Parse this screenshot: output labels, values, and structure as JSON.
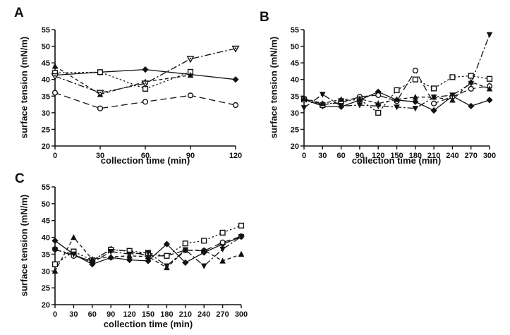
{
  "figure": {
    "background_color": "#ffffff",
    "ink_color": "#111111",
    "description": "Three-panel line chart figure (A, B, C) of surface tension versus collection time, five series per panel distinguished by marker shape and line dash style, no legend shown"
  },
  "chart_data": [
    {
      "type": "line",
      "panel_label": "A",
      "xlabel": "collection time (min)",
      "ylabel": "surface tension (mN/m)",
      "x": [
        0,
        30,
        60,
        90,
        120
      ],
      "xlim": [
        0,
        120
      ],
      "ylim": [
        20,
        55
      ],
      "yticks": [
        20,
        25,
        30,
        35,
        40,
        45,
        50,
        55
      ],
      "grid": false,
      "legend": "none",
      "series": [
        {
          "name": "filled-diamond-solid",
          "marker": "diamond-filled",
          "line": "solid",
          "values": [
            41.3,
            42.2,
            43,
            41.5,
            40
          ]
        },
        {
          "name": "open-circle-dashed",
          "marker": "circle-open",
          "line": "dashed",
          "values": [
            36,
            31.3,
            33.3,
            35.2,
            32.3
          ]
        },
        {
          "name": "open-square-dotted",
          "marker": "square-open",
          "line": "dotted",
          "values": [
            42,
            42.2,
            37.2,
            42.3,
            null
          ]
        },
        {
          "name": "filled-triangle-dashed",
          "marker": "triangle-up-filled",
          "line": "short-dash",
          "values": [
            44,
            35.5,
            39.3,
            41.3,
            null
          ]
        },
        {
          "name": "open-down-triangle-dashdot",
          "marker": "triangle-down-open-dot",
          "line": "dash-dot",
          "values": [
            41,
            36,
            38.8,
            46.2,
            49.3
          ]
        }
      ]
    },
    {
      "type": "line",
      "panel_label": "B",
      "xlabel": "collection time (min)",
      "ylabel": "surface tension (mN/m)",
      "x": [
        0,
        30,
        60,
        90,
        120,
        150,
        180,
        210,
        240,
        270,
        300
      ],
      "xlim": [
        0,
        300
      ],
      "ylim": [
        20,
        55
      ],
      "yticks": [
        20,
        25,
        30,
        35,
        40,
        45,
        50,
        55
      ],
      "grid": false,
      "legend": "none",
      "series": [
        {
          "name": "filled-diamond-solid",
          "marker": "diamond-filled",
          "line": "solid",
          "values": [
            34,
            32,
            31.8,
            33.8,
            36.3,
            33.8,
            33.3,
            30.7,
            35,
            32,
            33.8
          ]
        },
        {
          "name": "open-circle-dashed",
          "marker": "circle-open",
          "line": "dashed",
          "values": [
            34.2,
            32.5,
            33,
            34.8,
            35.3,
            33.5,
            42.7,
            32.8,
            34.8,
            37.2,
            38
          ]
        },
        {
          "name": "open-square-dotted",
          "marker": "square-open",
          "line": "dotted",
          "values": [
            34,
            32.3,
            33.5,
            34,
            30,
            36.8,
            40,
            37.3,
            40.7,
            41.1,
            40.2
          ]
        },
        {
          "name": "filled-triangle-dashed",
          "marker": "triangle-up-filled",
          "line": "short-dash",
          "values": [
            34.3,
            32.8,
            34,
            34.2,
            32.8,
            34,
            34.7,
            34.7,
            33.8,
            39.3,
            37.2
          ]
        },
        {
          "name": "filled-down-triangle-dashdot",
          "marker": "triangle-down-filled",
          "line": "dash-dot",
          "values": [
            31.5,
            35.5,
            32,
            32.3,
            32,
            31.7,
            31.3,
            34.7,
            35.3,
            38.8,
            53.5
          ]
        }
      ]
    },
    {
      "type": "line",
      "panel_label": "C",
      "xlabel": "collection time (min)",
      "ylabel": "surface tension (mN/m)",
      "x": [
        0,
        30,
        60,
        90,
        120,
        150,
        180,
        210,
        240,
        270,
        300
      ],
      "xlim": [
        0,
        300
      ],
      "ylim": [
        20,
        55
      ],
      "yticks": [
        20,
        25,
        30,
        35,
        40,
        45,
        50,
        55
      ],
      "grid": false,
      "legend": "none",
      "series": [
        {
          "name": "filled-diamond-solid",
          "marker": "diamond-filled",
          "line": "solid",
          "values": [
            39,
            35,
            32,
            34,
            33.3,
            33,
            38,
            32.5,
            35.5,
            38,
            40.2
          ]
        },
        {
          "name": "open-circle-dashed",
          "marker": "circle-open",
          "line": "dashed",
          "values": [
            36.5,
            34.5,
            33,
            36.5,
            35.8,
            34.5,
            34.5,
            36.2,
            36,
            38.5,
            40.3
          ]
        },
        {
          "name": "open-square-dotted",
          "marker": "square-open",
          "line": "dotted",
          "values": [
            32,
            35.8,
            33.2,
            36.3,
            36,
            35.3,
            34.5,
            38.2,
            39,
            41.4,
            43.5
          ]
        },
        {
          "name": "filled-triangle-dashed",
          "marker": "triangle-up-filled",
          "line": "short-dash",
          "values": [
            30,
            40,
            33.5,
            34.2,
            34.5,
            34.3,
            31,
            36.2,
            36.2,
            33,
            35
          ]
        },
        {
          "name": "filled-down-triangle-dashdot",
          "marker": "triangle-down-filled",
          "line": "dash-dot",
          "values": [
            36.3,
            35,
            32.5,
            35.8,
            35,
            35.5,
            31.5,
            36.3,
            31.5,
            36.5,
            40.2
          ]
        }
      ]
    }
  ]
}
